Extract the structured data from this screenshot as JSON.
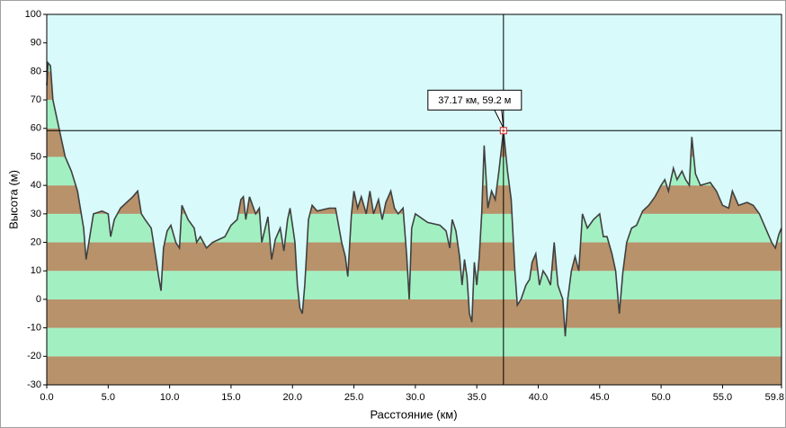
{
  "chart_data": {
    "type": "area",
    "xlabel": "Расстояние  (км)",
    "ylabel": "Высота (м)",
    "x": [
      0,
      0.1,
      0.3,
      0.5,
      1.0,
      1.5,
      2.0,
      2.5,
      3.0,
      3.2,
      3.5,
      3.8,
      4.5,
      5.0,
      5.2,
      5.5,
      6.0,
      7.0,
      7.4,
      7.7,
      8.0,
      8.5,
      8.9,
      9.1,
      9.3,
      9.5,
      9.8,
      10.1,
      10.5,
      10.8,
      11.0,
      11.5,
      12.0,
      12.2,
      12.5,
      13.0,
      13.5,
      14.0,
      14.5,
      15.0,
      15.5,
      15.8,
      16.0,
      16.2,
      16.5,
      17.0,
      17.3,
      17.5,
      18.0,
      18.3,
      18.6,
      19.0,
      19.3,
      19.6,
      19.8,
      20.2,
      20.4,
      20.6,
      20.8,
      21.0,
      21.3,
      21.6,
      22.0,
      23.0,
      23.5,
      24.0,
      24.3,
      24.5,
      24.8,
      25.0,
      25.3,
      25.6,
      26.0,
      26.3,
      26.6,
      27.0,
      27.3,
      27.6,
      28.0,
      28.3,
      28.6,
      29.0,
      29.3,
      29.5,
      29.7,
      30.0,
      31.0,
      32.0,
      32.5,
      32.8,
      33.0,
      33.3,
      33.6,
      33.8,
      34.0,
      34.2,
      34.4,
      34.6,
      34.8,
      35.0,
      35.2,
      35.4,
      35.6,
      35.9,
      36.2,
      36.5,
      36.8,
      37.17,
      37.5,
      37.8,
      38.1,
      38.3,
      38.6,
      39.0,
      39.3,
      39.5,
      39.8,
      40.1,
      40.4,
      40.7,
      41.0,
      41.3,
      41.6,
      42.0,
      42.2,
      42.4,
      42.7,
      43.0,
      43.3,
      43.6,
      44.0,
      44.5,
      45.0,
      45.3,
      45.6,
      46.0,
      46.3,
      46.6,
      46.9,
      47.2,
      47.6,
      48.0,
      48.5,
      49.0,
      49.5,
      50.0,
      50.3,
      50.6,
      51.0,
      51.3,
      51.7,
      52.0,
      52.3,
      52.5,
      52.8,
      53.2,
      54.0,
      54.5,
      55.0,
      55.5,
      55.8,
      56.3,
      57.0,
      57.5,
      58.0,
      58.5,
      59.0,
      59.3,
      59.6,
      59.8
    ],
    "values": [
      75,
      83,
      82,
      70,
      60,
      50,
      45,
      38,
      25,
      14,
      22,
      30,
      31,
      30,
      22,
      28,
      32,
      36,
      38,
      30,
      28,
      25,
      14,
      8,
      3,
      18,
      24,
      26,
      20,
      18,
      33,
      28,
      25,
      20,
      22,
      18,
      20,
      21,
      22,
      26,
      28,
      35,
      36,
      28,
      36,
      30,
      32,
      20,
      29,
      14,
      21,
      25,
      17,
      28,
      32,
      20,
      5,
      -3,
      -5,
      5,
      28,
      33,
      31,
      32,
      32,
      20,
      15,
      8,
      30,
      38,
      32,
      36,
      30,
      38,
      30,
      35,
      28,
      34,
      38,
      32,
      30,
      32,
      15,
      0,
      25,
      30,
      27,
      26,
      24,
      18,
      28,
      24,
      15,
      5,
      14,
      8,
      -5,
      -8,
      13,
      5,
      15,
      30,
      54,
      32,
      38,
      35,
      45,
      59.2,
      45,
      35,
      10,
      -2,
      0,
      5,
      7,
      13,
      16,
      5,
      10,
      8,
      5,
      20,
      5,
      0,
      -13,
      0,
      10,
      15,
      10,
      30,
      25,
      28,
      30,
      22,
      22,
      16,
      10,
      -5,
      10,
      20,
      25,
      26,
      31,
      33,
      36,
      40,
      42,
      38,
      46,
      42,
      45,
      42,
      40,
      57,
      44,
      40,
      41,
      38,
      33,
      32,
      38,
      33,
      34,
      33,
      30,
      25,
      20,
      18,
      23,
      25
    ],
    "line_color": "#404040",
    "sky_color": "#d8fafa",
    "band_colors": [
      "#b8926a",
      "#a2f0c2"
    ],
    "xlim": [
      0,
      59.8
    ],
    "ylim": [
      -30,
      100
    ],
    "xticks": [
      {
        "value": 0,
        "label": "0.0"
      },
      {
        "value": 5,
        "label": "5.0"
      },
      {
        "value": 10,
        "label": "10.0"
      },
      {
        "value": 15,
        "label": "15.0"
      },
      {
        "value": 20,
        "label": "20.0"
      },
      {
        "value": 25,
        "label": "25.0"
      },
      {
        "value": 30,
        "label": "30.0"
      },
      {
        "value": 35,
        "label": "35.0"
      },
      {
        "value": 40,
        "label": "40.0"
      },
      {
        "value": 45,
        "label": "45.0"
      },
      {
        "value": 50,
        "label": "50.0"
      },
      {
        "value": 55,
        "label": "55.0"
      },
      59.8
    ],
    "yticks": [
      -30,
      -20,
      -10,
      0,
      10,
      20,
      30,
      40,
      50,
      60,
      70,
      80,
      90,
      100
    ],
    "cursor": {
      "x": 37.17,
      "y": 59.2,
      "label": "37.17 км, 59.2 м"
    }
  }
}
